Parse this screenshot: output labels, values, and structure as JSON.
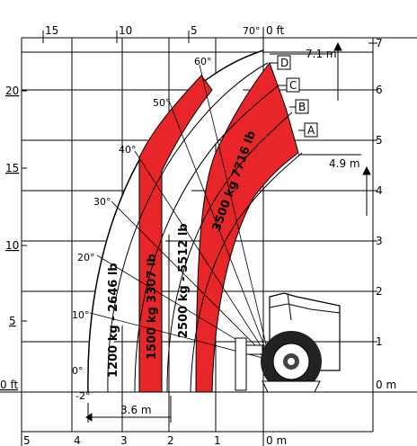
{
  "feet_axis_left": [
    "20",
    "15",
    "10",
    "5",
    "0 ft"
  ],
  "feet_axis_top": [
    "15",
    "10",
    "5",
    "0 ft"
  ],
  "meter_axis_right": [
    "7",
    "6",
    "5",
    "4",
    "3",
    "2",
    "1",
    "0 m"
  ],
  "meter_axis_bottom": [
    "5",
    "4",
    "3",
    "2",
    "1",
    "0 m"
  ],
  "boom_angles": [
    "70°",
    "60°",
    "50°",
    "40°",
    "30°",
    "20°",
    "10°",
    "0°",
    "-2°"
  ],
  "load_zones": [
    {
      "key": "1200",
      "text": "1200 kg - 2646 lb"
    },
    {
      "key": "1500",
      "text": "1500 kg   3307 lb"
    },
    {
      "key": "2500",
      "text": "2500 kg - 5512 lb"
    },
    {
      "key": "3500",
      "text": "3500 kg   7716 lb"
    }
  ],
  "extension_markers": [
    "A",
    "B",
    "C",
    "D"
  ],
  "dimensions": {
    "max_height": "7.1 m",
    "height_a": "4.9 m",
    "reach_below": "3.6 m"
  },
  "colors": {
    "zone_red": "#e8262a",
    "grid": "#000000"
  }
}
